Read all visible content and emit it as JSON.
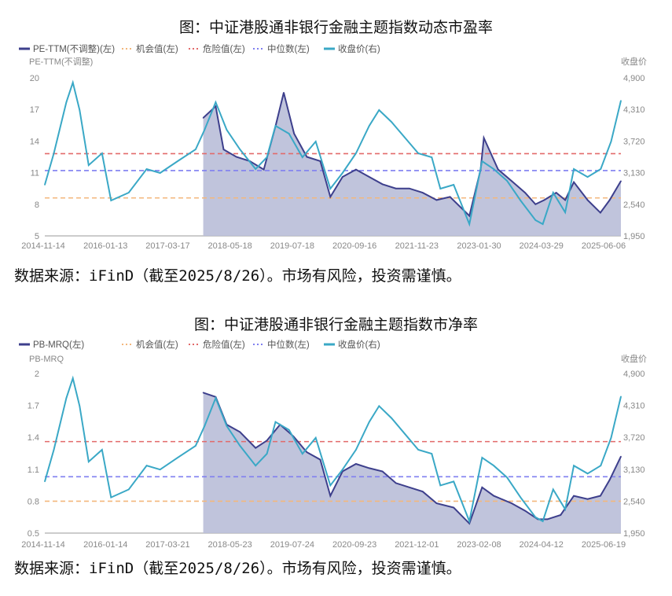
{
  "chart_data": [
    {
      "type": "line",
      "title": "图：中证港股通非银行金融主题指数动态市盈率",
      "source_note": "数据来源：iFinD（截至2025/8/26）。市场有风险，投资需谨慎。",
      "ylabel_left": "PE-TTM(不调整)",
      "ylabel_right": "收盘价",
      "ylim_left": [
        5,
        20
      ],
      "yticks_left": [
        "5",
        "8",
        "11",
        "14",
        "17",
        "20"
      ],
      "ylim_right": [
        1950,
        4900
      ],
      "yticks_right": [
        "1,950",
        "2,540",
        "3,130",
        "3,720",
        "4,310",
        "4,900"
      ],
      "xlim": [
        "2014-11-14",
        "2025-08-26"
      ],
      "xticks": [
        "2014-11-14",
        "2016-01-13",
        "2017-03-17",
        "2018-05-18",
        "2019-07-18",
        "2020-09-16",
        "2021-11-23",
        "2023-01-30",
        "2024-03-29",
        "2025-06-06"
      ],
      "legend": [
        "PE-TTM(不调整)(左)",
        "机会值(左)",
        "危险值(左)",
        "中位数(左)",
        "收盘价(右)"
      ],
      "legend_position": "top-left",
      "colors": {
        "main": "#3d3f8c",
        "fill": "#b9bed8",
        "opportunity": "#f3b77c",
        "danger": "#e26a6a",
        "median": "#7f7ff0",
        "close": "#3aa8c6"
      },
      "opportunity": 8.6,
      "danger": 12.8,
      "median": 11.2,
      "series": [
        {
          "name": "PE-TTM(不调整)(左)",
          "axis": "left",
          "x": [
            "2017-11-01",
            "2018-01-25",
            "2018-03-20",
            "2018-06-15",
            "2018-09-15",
            "2018-12-20",
            "2019-03-10",
            "2019-05-05",
            "2019-07-15",
            "2019-10-10",
            "2020-01-10",
            "2020-03-19",
            "2020-06-10",
            "2020-09-10",
            "2020-12-10",
            "2021-03-10",
            "2021-06-10",
            "2021-09-10",
            "2021-12-10",
            "2022-03-15",
            "2022-06-15",
            "2022-10-25",
            "2023-01-10",
            "2023-02-01",
            "2023-05-10",
            "2023-08-10",
            "2023-11-10",
            "2024-01-20",
            "2024-03-20",
            "2024-06-10",
            "2024-08-10",
            "2024-10-08",
            "2025-01-10",
            "2025-04-08",
            "2025-06-10",
            "2025-08-26"
          ],
          "values": [
            16.2,
            17.3,
            13.2,
            12.5,
            12.1,
            11.3,
            15.4,
            18.6,
            14.7,
            12.5,
            12.1,
            8.7,
            10.6,
            11.3,
            10.6,
            9.9,
            9.5,
            9.5,
            9.1,
            8.4,
            8.7,
            6.9,
            11.3,
            14.3,
            11.3,
            10.2,
            9.1,
            8.0,
            8.4,
            9.1,
            8.4,
            10.1,
            8.4,
            7.2,
            8.4,
            10.2
          ]
        },
        {
          "name": "收盘价(右)",
          "axis": "right",
          "x": [
            "2014-11-14",
            "2015-01-15",
            "2015-04-10",
            "2015-05-25",
            "2015-07-10",
            "2015-09-10",
            "2015-12-10",
            "2016-02-10",
            "2016-06-10",
            "2016-10-10",
            "2017-01-10",
            "2017-05-10",
            "2017-09-10",
            "2017-11-10",
            "2018-01-25",
            "2018-04-10",
            "2018-07-10",
            "2018-10-25",
            "2019-01-10",
            "2019-03-10",
            "2019-06-10",
            "2019-09-10",
            "2019-12-10",
            "2020-03-19",
            "2020-06-10",
            "2020-09-10",
            "2020-12-10",
            "2021-02-15",
            "2021-05-10",
            "2021-08-10",
            "2021-11-10",
            "2022-02-10",
            "2022-04-10",
            "2022-07-10",
            "2022-10-25",
            "2023-01-20",
            "2023-04-10",
            "2023-07-10",
            "2023-10-10",
            "2024-01-20",
            "2024-03-10",
            "2024-05-20",
            "2024-08-10",
            "2024-10-08",
            "2025-01-10",
            "2025-04-10",
            "2025-06-20",
            "2025-08-26"
          ],
          "values": [
            2904,
            3491,
            4445,
            4812,
            4298,
            3270,
            3491,
            2610,
            2757,
            3197,
            3124,
            3344,
            3564,
            3931,
            4445,
            3931,
            3564,
            3197,
            3417,
            4005,
            3858,
            3417,
            3711,
            2831,
            3124,
            3491,
            4005,
            4298,
            4078,
            3784,
            3491,
            3417,
            2831,
            2904,
            2170,
            3344,
            3197,
            2977,
            2610,
            2243,
            2170,
            2757,
            2390,
            3197,
            3050,
            3197,
            3711,
            4474
          ]
        }
      ]
    },
    {
      "type": "line",
      "title": "图：中证港股通非银行金融主题指数市净率",
      "source_note": "数据来源：iFinD（截至2025/8/26）。市场有风险，投资需谨慎。",
      "ylabel_left": "PB-MRQ",
      "ylabel_right": "收盘价",
      "ylim_left": [
        0.5,
        2
      ],
      "yticks_left": [
        "0.5",
        "0.8",
        "1.1",
        "1.4",
        "1.7",
        "2"
      ],
      "ylim_right": [
        1950,
        4900
      ],
      "yticks_right": [
        "1,950",
        "2,540",
        "3,130",
        "3,720",
        "4,310",
        "4,900"
      ],
      "xlim": [
        "2014-11-14",
        "2025-08-26"
      ],
      "xticks": [
        "2014-11-14",
        "2016-01-14",
        "2017-03-21",
        "2018-05-23",
        "2019-07-24",
        "2020-09-23",
        "2021-12-01",
        "2023-02-08",
        "2024-04-12",
        "2025-06-19"
      ],
      "legend": [
        "PB-MRQ(左)",
        "机会值(左)",
        "危险值(左)",
        "中位数(左)",
        "收盘价(右)"
      ],
      "legend_position": "top-left",
      "colors": {
        "main": "#3d3f8c",
        "fill": "#b9bed8",
        "opportunity": "#f3b77c",
        "danger": "#e26a6a",
        "median": "#7f7ff0",
        "close": "#3aa8c6"
      },
      "opportunity": 0.8,
      "danger": 1.36,
      "median": 1.03,
      "series": [
        {
          "name": "PB-MRQ(左)",
          "axis": "left",
          "x": [
            "2017-11-01",
            "2018-01-25",
            "2018-04-10",
            "2018-07-10",
            "2018-10-25",
            "2019-01-10",
            "2019-04-10",
            "2019-07-10",
            "2019-10-10",
            "2020-01-10",
            "2020-03-19",
            "2020-06-10",
            "2020-09-10",
            "2020-12-10",
            "2021-03-10",
            "2021-06-10",
            "2021-09-10",
            "2021-12-10",
            "2022-03-15",
            "2022-07-10",
            "2022-10-25",
            "2023-01-20",
            "2023-04-10",
            "2023-08-10",
            "2023-11-10",
            "2024-02-05",
            "2024-04-10",
            "2024-07-10",
            "2024-10-08",
            "2025-01-10",
            "2025-04-08",
            "2025-06-10",
            "2025-08-26"
          ],
          "values": [
            1.82,
            1.78,
            1.52,
            1.45,
            1.3,
            1.37,
            1.52,
            1.41,
            1.26,
            1.19,
            0.85,
            1.08,
            1.15,
            1.11,
            1.08,
            0.97,
            0.93,
            0.89,
            0.78,
            0.74,
            0.59,
            0.93,
            0.85,
            0.78,
            0.71,
            0.63,
            0.63,
            0.67,
            0.85,
            0.82,
            0.85,
            1.0,
            1.22
          ]
        },
        {
          "name": "收盘价(右)",
          "axis": "right",
          "x": [
            "2014-11-14",
            "2015-01-15",
            "2015-04-10",
            "2015-05-25",
            "2015-07-10",
            "2015-09-10",
            "2015-12-10",
            "2016-02-10",
            "2016-06-10",
            "2016-10-10",
            "2017-01-10",
            "2017-05-10",
            "2017-09-10",
            "2017-11-10",
            "2018-01-25",
            "2018-04-10",
            "2018-07-10",
            "2018-10-25",
            "2019-01-10",
            "2019-03-10",
            "2019-06-10",
            "2019-09-10",
            "2019-12-10",
            "2020-03-19",
            "2020-06-10",
            "2020-09-10",
            "2020-12-10",
            "2021-02-15",
            "2021-05-10",
            "2021-08-10",
            "2021-11-10",
            "2022-02-10",
            "2022-04-10",
            "2022-07-10",
            "2022-10-25",
            "2023-01-20",
            "2023-04-10",
            "2023-07-10",
            "2023-10-10",
            "2024-01-20",
            "2024-03-10",
            "2024-05-20",
            "2024-08-10",
            "2024-10-08",
            "2025-01-10",
            "2025-04-10",
            "2025-06-20",
            "2025-08-26"
          ],
          "values": [
            2904,
            3491,
            4445,
            4812,
            4298,
            3270,
            3491,
            2610,
            2757,
            3197,
            3124,
            3344,
            3564,
            3931,
            4445,
            3931,
            3564,
            3197,
            3417,
            4005,
            3858,
            3417,
            3711,
            2831,
            3124,
            3491,
            4005,
            4298,
            4078,
            3784,
            3491,
            3417,
            2831,
            2904,
            2170,
            3344,
            3197,
            2977,
            2610,
            2243,
            2170,
            2757,
            2390,
            3197,
            3050,
            3197,
            3711,
            4474
          ]
        }
      ]
    }
  ]
}
